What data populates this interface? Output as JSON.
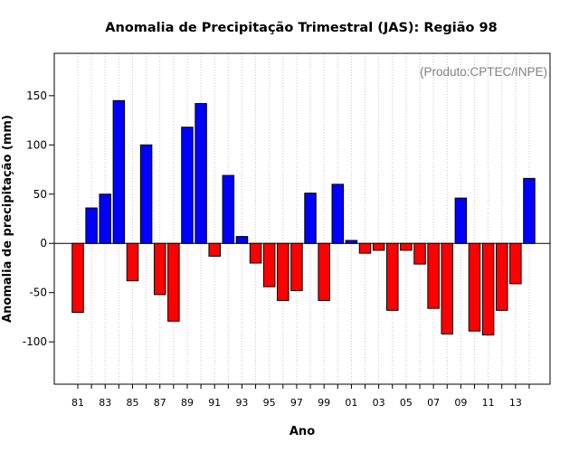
{
  "chart_data": {
    "type": "bar",
    "title": "Anomalia de Precipitação Trimestral (JAS): Região 98",
    "xlabel": "Ano",
    "ylabel": "Anomalia de precipitação (mm)",
    "annotation": "(Produto:CPTEC/INPE)",
    "ylim": [
      -143,
      193
    ],
    "yticks": [
      -100,
      -50,
      0,
      50,
      100,
      150
    ],
    "ytick_labels": [
      "-100",
      "-50",
      "0",
      "50",
      "100",
      "150"
    ],
    "grid": "vertical-dotted",
    "colors": {
      "positive": "#0000ff",
      "negative": "#ff0000",
      "grid": "#c8c8c8"
    },
    "categories": [
      "1981",
      "1982",
      "1983",
      "1984",
      "1985",
      "1986",
      "1987",
      "1988",
      "1989",
      "1990",
      "1991",
      "1992",
      "1993",
      "1994",
      "1995",
      "1996",
      "1997",
      "1998",
      "1999",
      "2000",
      "2001",
      "2002",
      "2003",
      "2004",
      "2005",
      "2006",
      "2007",
      "2008",
      "2009",
      "2010",
      "2011",
      "2012",
      "2013",
      "2014"
    ],
    "xtick_labels": [
      "81",
      "",
      "83",
      "",
      "85",
      "",
      "87",
      "",
      "89",
      "",
      "91",
      "",
      "93",
      "",
      "95",
      "",
      "97",
      "",
      "99",
      "",
      "01",
      "",
      "03",
      "",
      "05",
      "",
      "07",
      "",
      "09",
      "",
      "11",
      "",
      "13",
      ""
    ],
    "values": [
      -70,
      36,
      50,
      145,
      -38,
      100,
      -52,
      -79,
      118,
      142,
      -13,
      69,
      7,
      -20,
      -44,
      -58,
      -48,
      51,
      -58,
      60,
      3,
      -10,
      -7,
      -68,
      -7,
      -21,
      -66,
      -92,
      46,
      -89,
      -93,
      -68,
      -41,
      66
    ]
  }
}
